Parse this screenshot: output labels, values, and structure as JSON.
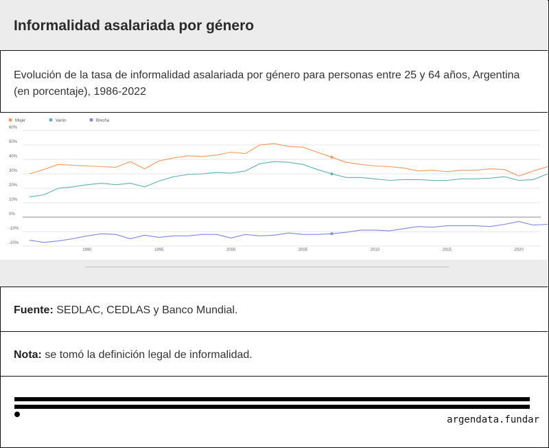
{
  "header": {
    "title": "Informalidad asalariada por género"
  },
  "subtitle": "Evolución de la tasa de informalidad asalariada por género para personas entre 25 y 64 años, Argentina (en porcentaje), 1986-2022",
  "source": {
    "label": "Fuente:",
    "text": "SEDLAC, CEDLAS y Banco Mundial."
  },
  "note": {
    "label": "Nota:",
    "text": "se tomó la definición legal de informalidad."
  },
  "brand": "argendata.fundar",
  "chart_data": {
    "type": "line",
    "x": [
      1986,
      1987,
      1988,
      1989,
      1990,
      1991,
      1992,
      1993,
      1994,
      1995,
      1996,
      1997,
      1998,
      1999,
      2000,
      2001,
      2002,
      2003,
      2004,
      2005,
      2006,
      2007,
      2008,
      2009,
      2010,
      2011,
      2012,
      2013,
      2014,
      2015,
      2016,
      2017,
      2018,
      2019,
      2020,
      2021,
      2022
    ],
    "series": [
      {
        "name": "Mujer",
        "color": "#f4975a",
        "values": [
          30,
          33,
          36.5,
          36,
          35.5,
          35,
          34.5,
          38.5,
          33.5,
          39,
          41,
          42.5,
          42,
          43,
          45,
          44,
          50,
          51,
          49,
          48.5,
          45,
          41.5,
          38,
          36.5,
          35.5,
          35,
          34,
          32,
          32.5,
          31.5,
          32.5,
          32.5,
          33.5,
          33,
          28.5,
          32,
          35
        ]
      },
      {
        "name": "Varón",
        "color": "#5fafb3",
        "values": [
          14,
          15.5,
          20,
          21,
          22.5,
          23.5,
          22.5,
          23.5,
          21,
          25,
          28,
          29.5,
          30,
          31,
          30.5,
          32,
          37,
          38.5,
          38,
          36.5,
          33,
          30,
          27.5,
          27.5,
          26.5,
          25.5,
          26,
          26,
          25.5,
          25.5,
          26.5,
          26.5,
          27,
          28,
          25.5,
          26,
          30
        ]
      },
      {
        "name": "Brecha",
        "color": "#7b86e0",
        "values": [
          -16,
          -17.5,
          -16.5,
          -15,
          -13,
          -11.5,
          -12,
          -15,
          -12.5,
          -14,
          -13,
          -13,
          -12,
          -12,
          -14.5,
          -12,
          -13,
          -12.5,
          -11,
          -12,
          -12,
          -11.5,
          -10.5,
          -9,
          -9,
          -9.5,
          -8,
          -6.5,
          -7,
          -6,
          -6,
          -6,
          -6.5,
          -5,
          -3,
          -5.5,
          -5
        ]
      }
    ],
    "highlight_x": 2007,
    "yticks": [
      -20,
      -10,
      0,
      10,
      20,
      30,
      40,
      50,
      60
    ],
    "ytick_labels": [
      "-20%",
      "-10%",
      "0%",
      "10%",
      "20%",
      "30%",
      "40%",
      "50%",
      "60%"
    ],
    "xticks": [
      1990,
      1995,
      2000,
      2005,
      2010,
      2015,
      2020
    ],
    "xlim": [
      1986,
      2022
    ],
    "ylim": [
      -20,
      60
    ],
    "grid": true,
    "legend": "top-left"
  }
}
